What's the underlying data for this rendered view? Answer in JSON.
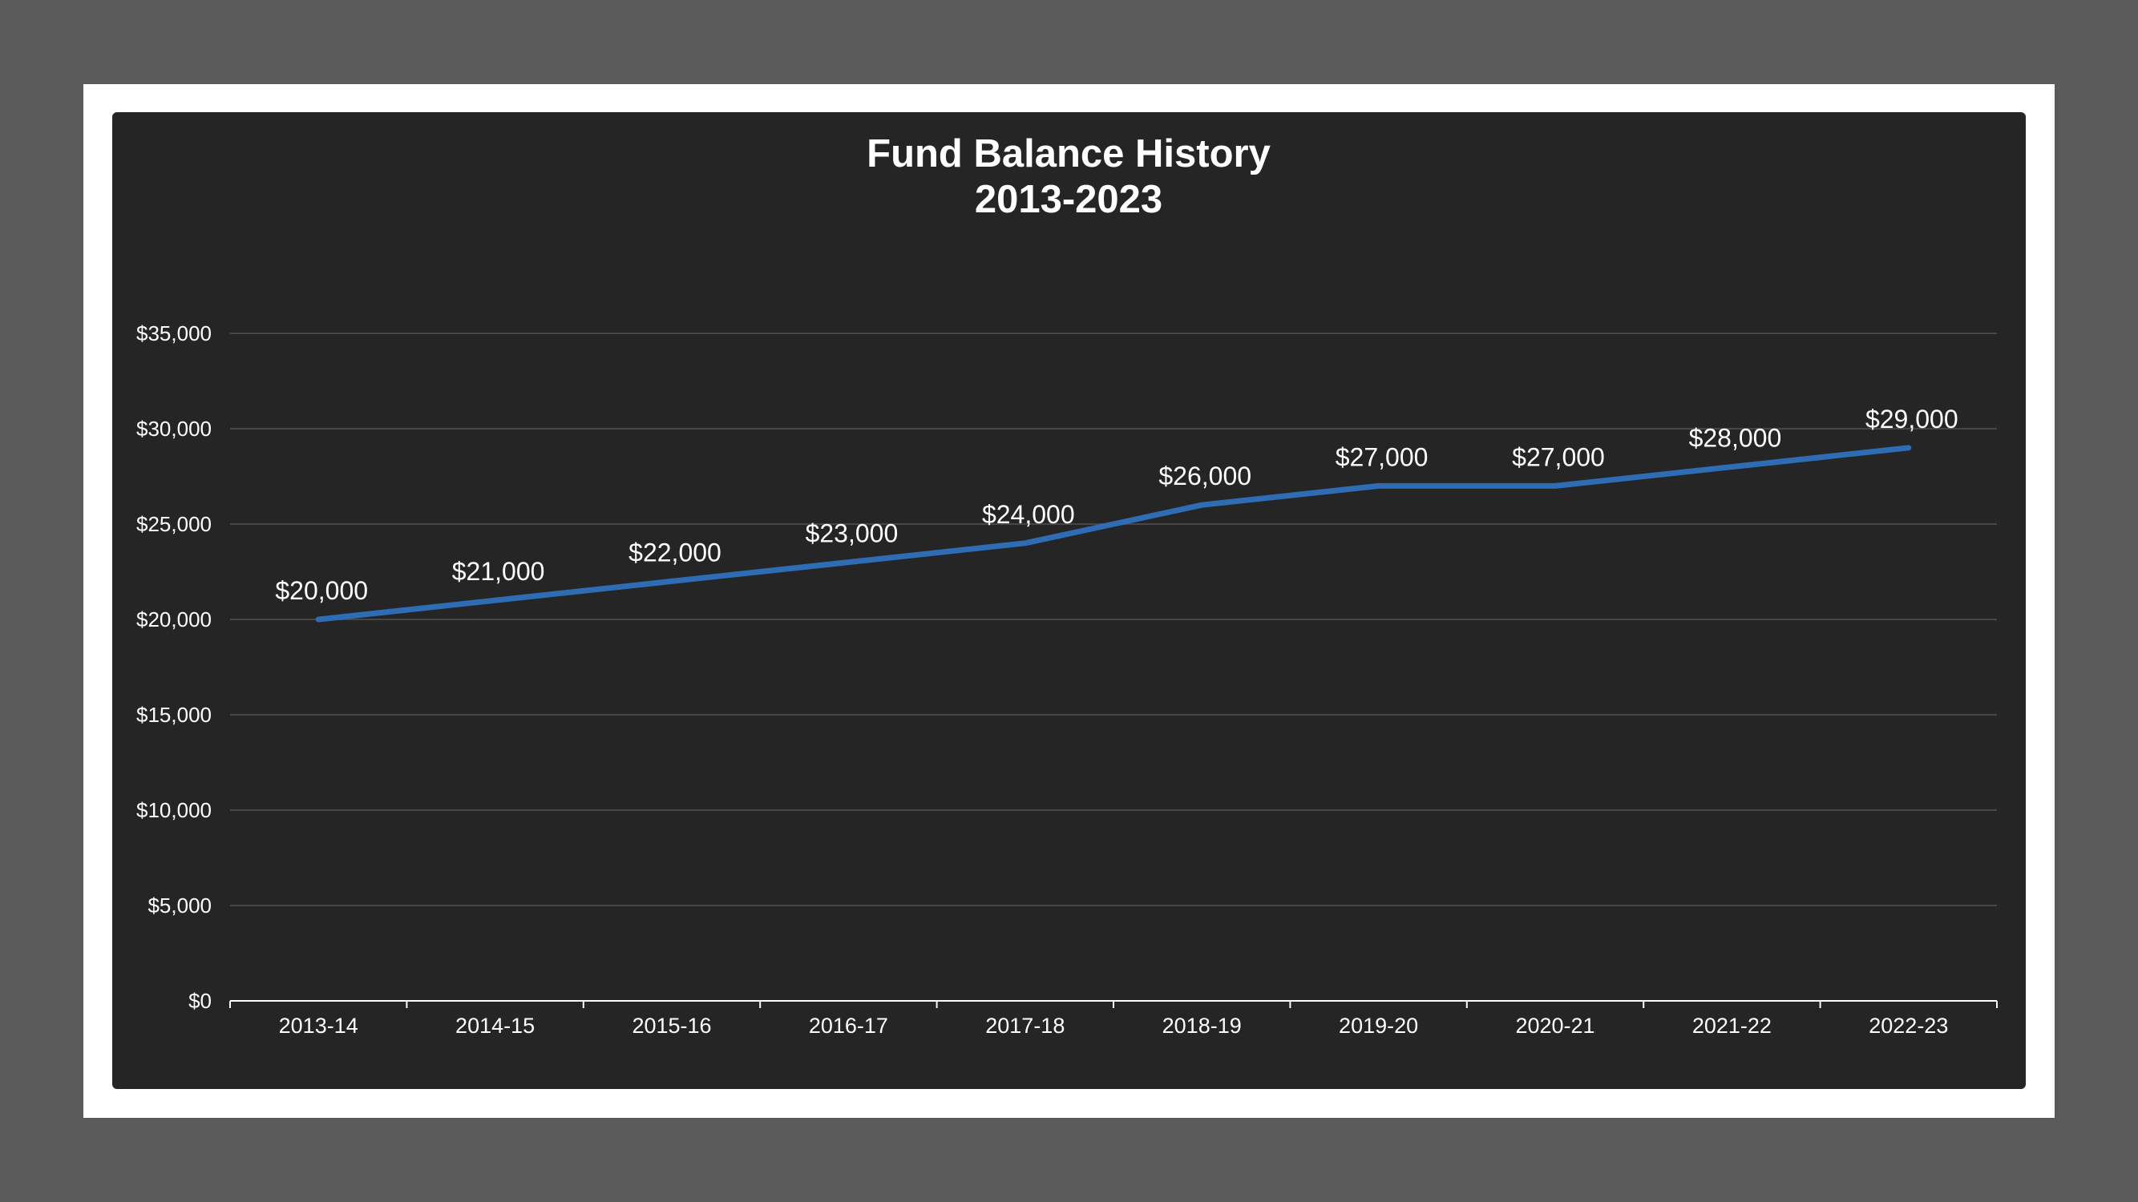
{
  "chart_data": {
    "type": "line",
    "title": "Fund Balance History",
    "subtitle": "2013-2023",
    "xlabel": "",
    "ylabel": "",
    "categories": [
      "2013-14",
      "2014-15",
      "2015-16",
      "2016-17",
      "2017-18",
      "2018-19",
      "2019-20",
      "2020-21",
      "2021-22",
      "2022-23"
    ],
    "series": [
      {
        "values": [
          20000,
          21000,
          22000,
          23000,
          24000,
          26000,
          27000,
          27000,
          28000,
          29000
        ],
        "data_labels": [
          "$20,000",
          "$21,000",
          "$22,000",
          "$23,000",
          "$24,000",
          "$26,000",
          "$27,000",
          "$27,000",
          "$28,000",
          "$29,000"
        ],
        "color": "#2e6db4"
      }
    ],
    "ylim": [
      0,
      35000
    ],
    "yticks": [
      0,
      5000,
      10000,
      15000,
      20000,
      25000,
      30000,
      35000
    ],
    "ytick_labels": [
      "$0",
      "$5,000",
      "$10,000",
      "$15,000",
      "$20,000",
      "$25,000",
      "$30,000",
      "$35,000"
    ],
    "grid": true,
    "legend": "none"
  },
  "colors": {
    "page_background": "#5a5a5a",
    "frame": "#ffffff",
    "chart_background": "#252525",
    "gridline": "#474747",
    "axis": "#ffffff",
    "text": "#ffffff"
  }
}
